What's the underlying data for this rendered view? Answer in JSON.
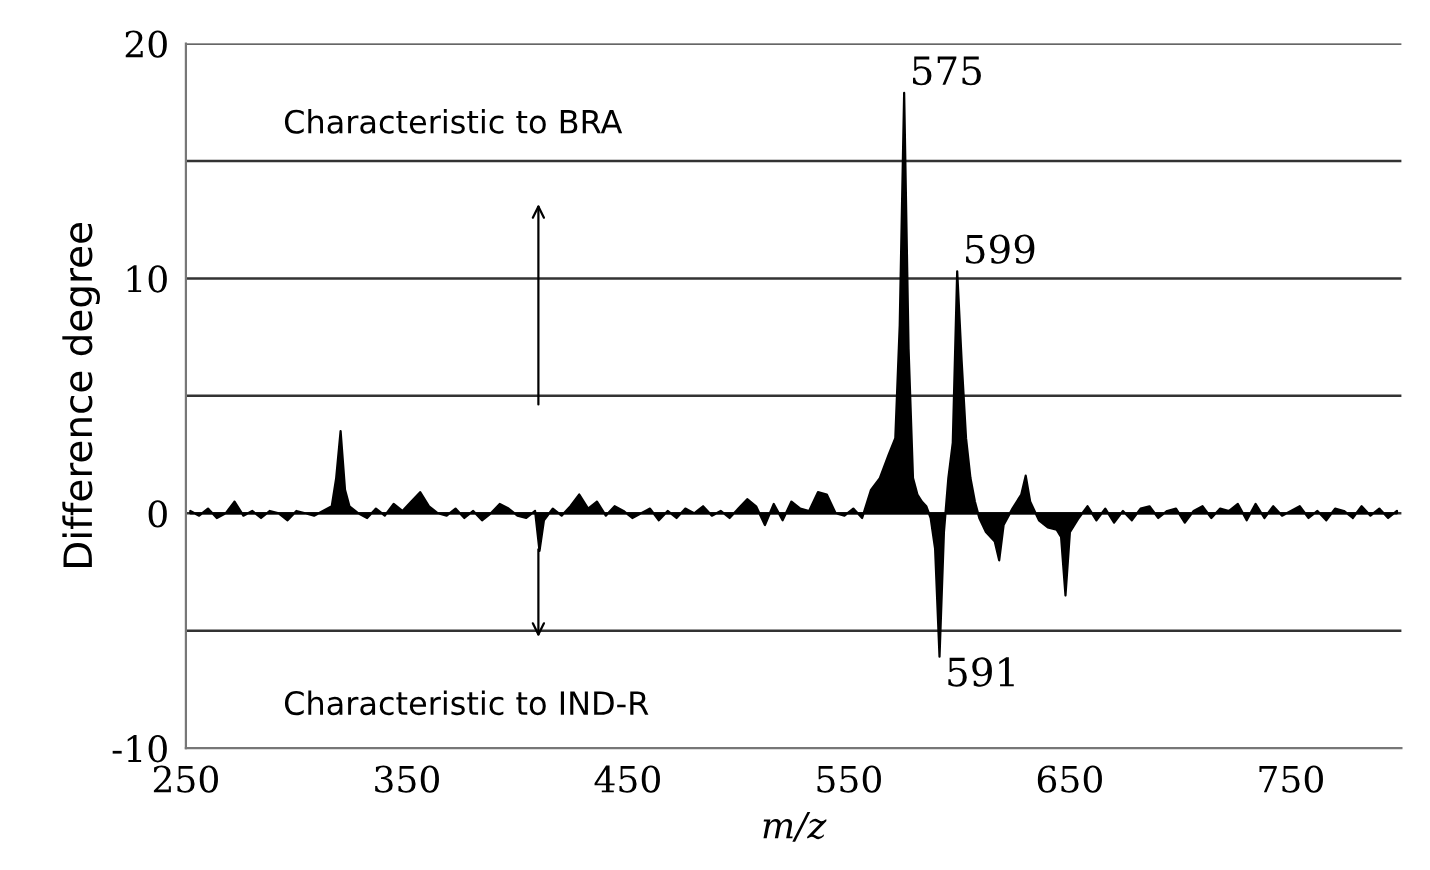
{
  "chart_data": {
    "type": "area",
    "xlabel": "m/z",
    "ylabel": "Difference degree",
    "xlim": [
      250,
      800
    ],
    "xticks": [
      250,
      350,
      450,
      550,
      650,
      750
    ],
    "ylim": [
      -10,
      20
    ],
    "yticks": [
      -10,
      {
        "value": -5,
        "label": null
      },
      0,
      {
        "value": 5,
        "label": null
      },
      10,
      {
        "value": 15,
        "label": null
      },
      20
    ],
    "grid": "y",
    "series": [
      {
        "color": "#000000",
        "x": [
          252,
          256,
          260,
          264,
          268,
          272,
          276,
          280,
          284,
          288,
          292,
          296,
          300,
          304,
          308,
          312,
          316,
          318,
          320,
          322,
          324,
          328,
          332,
          336,
          340,
          344,
          348,
          352,
          356,
          360,
          364,
          368,
          372,
          376,
          380,
          384,
          388,
          392,
          396,
          400,
          404,
          408,
          410,
          412,
          416,
          420,
          424,
          428,
          432,
          436,
          440,
          444,
          448,
          452,
          456,
          460,
          464,
          468,
          472,
          476,
          480,
          484,
          488,
          492,
          496,
          500,
          504,
          508,
          512,
          516,
          520,
          524,
          528,
          532,
          536,
          540,
          544,
          548,
          552,
          556,
          560,
          564,
          568,
          571,
          573,
          575,
          577,
          579,
          581,
          583,
          585,
          587,
          589,
          591,
          593,
          595,
          597,
          599,
          601,
          603,
          605,
          607,
          609,
          612,
          616,
          618,
          620,
          624,
          628,
          630,
          632,
          636,
          640,
          644,
          646,
          648,
          650,
          654,
          658,
          662,
          666,
          670,
          674,
          678,
          682,
          686,
          690,
          694,
          698,
          702,
          706,
          710,
          714,
          718,
          722,
          726,
          730,
          734,
          738,
          742,
          746,
          750,
          754,
          758,
          762,
          766,
          770,
          774,
          778,
          782,
          786,
          790,
          794,
          798
        ],
        "values": [
          0.1,
          -0.1,
          0.2,
          -0.2,
          0,
          0.5,
          -0.1,
          0.1,
          -0.2,
          0.1,
          0,
          -0.3,
          0.1,
          0,
          -0.1,
          0.1,
          0.3,
          1.5,
          3.5,
          1.0,
          0.3,
          0,
          -0.2,
          0.2,
          -0.1,
          0.4,
          0.1,
          0.5,
          0.9,
          0.3,
          0,
          -0.1,
          0.2,
          -0.2,
          0.1,
          -0.3,
          0,
          0.4,
          0.2,
          -0.1,
          -0.2,
          0.1,
          -1.6,
          -0.3,
          0.2,
          -0.1,
          0.3,
          0.8,
          0.2,
          0.5,
          -0.1,
          0.3,
          0.1,
          -0.2,
          0,
          0.2,
          -0.3,
          0.1,
          -0.2,
          0.2,
          0,
          0.3,
          -0.1,
          0.1,
          -0.2,
          0.2,
          0.6,
          0.3,
          -0.5,
          0.4,
          -0.3,
          0.5,
          0.2,
          0.1,
          0.9,
          0.8,
          0,
          -0.1,
          0.2,
          -0.2,
          1.0,
          1.5,
          2.5,
          3.2,
          8,
          17.9,
          7,
          1.5,
          0.8,
          0.5,
          0.3,
          -0.2,
          -1.5,
          -6.1,
          -0.8,
          1.5,
          3.0,
          10.3,
          6.5,
          3.2,
          1.5,
          0.5,
          -0.2,
          -0.8,
          -1.2,
          -2.0,
          -0.5,
          0.2,
          0.8,
          1.6,
          0.5,
          -0.3,
          -0.6,
          -0.7,
          -1.0,
          -3.5,
          -0.8,
          -0.2,
          0.3,
          -0.3,
          0.2,
          -0.4,
          0.1,
          -0.3,
          0.2,
          0.3,
          -0.2,
          0.1,
          0.2,
          -0.4,
          0.1,
          0.3,
          -0.2,
          0.2,
          0.1,
          0.4,
          -0.3,
          0.4,
          -0.2,
          0.3,
          -0.1,
          0.1,
          0.3,
          -0.2,
          0.1,
          -0.3,
          0.2,
          0.1,
          -0.2,
          0.3,
          -0.1,
          0.2,
          -0.2,
          0.1
        ]
      }
    ],
    "annotations": [
      {
        "text": "575",
        "x": 575,
        "y": 17.9
      },
      {
        "text": "599",
        "x": 599,
        "y": 10.3
      },
      {
        "text": "591",
        "x": 591,
        "y": -6.1
      },
      "Characteristic to BRA",
      "Characteristic to IND-R"
    ]
  }
}
